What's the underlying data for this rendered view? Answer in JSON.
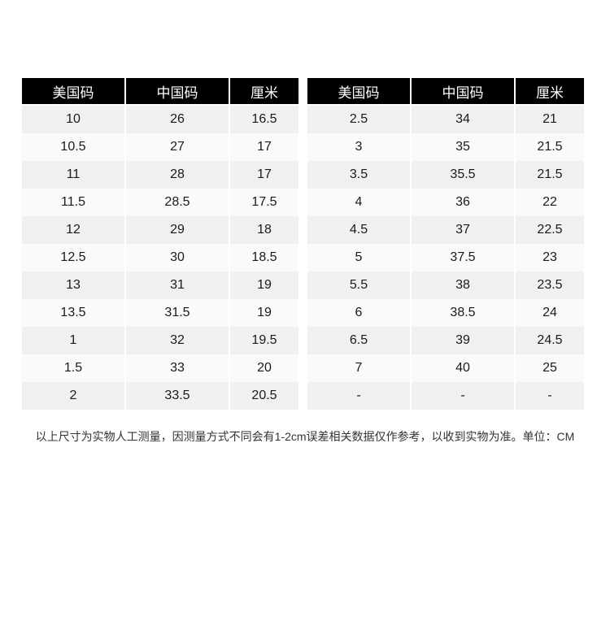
{
  "colors": {
    "header_bg": "#000000",
    "header_text": "#ffffff",
    "row_odd": "#f0f0f0",
    "row_even": "#fafafa",
    "cell_text": "#1a1a1a",
    "note_text": "#333333",
    "page_bg": "#ffffff"
  },
  "tables": [
    {
      "headers": [
        "美国码",
        "中国码",
        "厘米"
      ],
      "rows": [
        [
          "10",
          "26",
          "16.5"
        ],
        [
          "10.5",
          "27",
          "17"
        ],
        [
          "11",
          "28",
          "17"
        ],
        [
          "11.5",
          "28.5",
          "17.5"
        ],
        [
          "12",
          "29",
          "18"
        ],
        [
          "12.5",
          "30",
          "18.5"
        ],
        [
          "13",
          "31",
          "19"
        ],
        [
          "13.5",
          "31.5",
          "19"
        ],
        [
          "1",
          "32",
          "19.5"
        ],
        [
          "1.5",
          "33",
          "20"
        ],
        [
          "2",
          "33.5",
          "20.5"
        ]
      ]
    },
    {
      "headers": [
        "美国码",
        "中国码",
        "厘米"
      ],
      "rows": [
        [
          "2.5",
          "34",
          "21"
        ],
        [
          "3",
          "35",
          "21.5"
        ],
        [
          "3.5",
          "35.5",
          "21.5"
        ],
        [
          "4",
          "36",
          "22"
        ],
        [
          "4.5",
          "37",
          "22.5"
        ],
        [
          "5",
          "37.5",
          "23"
        ],
        [
          "5.5",
          "38",
          "23.5"
        ],
        [
          "6",
          "38.5",
          "24"
        ],
        [
          "6.5",
          "39",
          "24.5"
        ],
        [
          "7",
          "40",
          "25"
        ],
        [
          "-",
          "-",
          "-"
        ]
      ]
    }
  ],
  "footer": {
    "note": "以上尺寸为实物人工测量，因测量方式不同会有1-2cm误差相关数据仅作参考，以收到实物为准。单位：CM"
  }
}
